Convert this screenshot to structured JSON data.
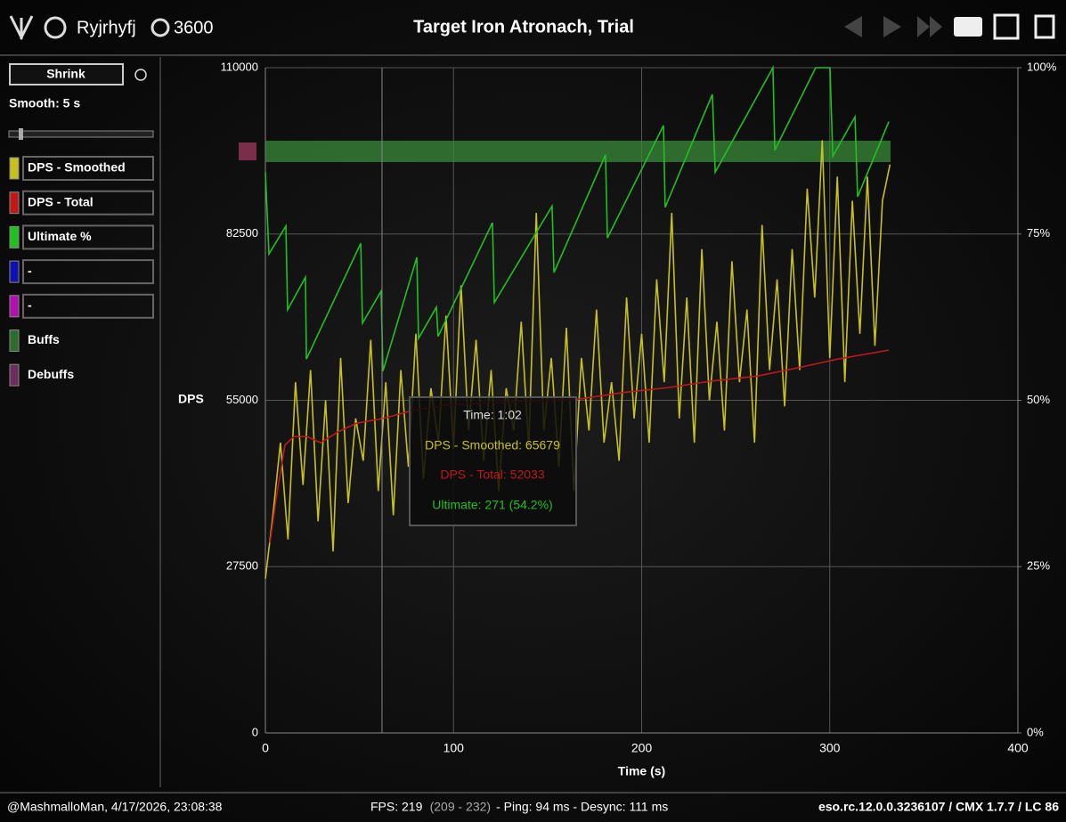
{
  "header": {
    "player": "Ryjrhyfj",
    "champion_points": "3600",
    "title": "Target Iron Atronach, Trial"
  },
  "sidebar": {
    "shrink": "Shrink",
    "smooth": "Smooth: 5 s",
    "extra_legend": [
      {
        "label": "-",
        "color": "#1010b0"
      },
      {
        "label": "-",
        "color": "#b010b0"
      },
      {
        "label": "Buffs",
        "color": "#2e6b2e"
      },
      {
        "label": "Debuffs",
        "color": "#6b2e5e"
      }
    ]
  },
  "footer": {
    "user": "@MashmalloMan, 4/17/2026, 23:08:38",
    "fps": "FPS: 219",
    "fps_range": "(209 - 232)",
    "net": "- Ping: 94 ms - Desync: 111 ms",
    "version": "eso.rc.12.0.0.3236107 / CMX 1.7.7 / LC 86"
  },
  "chart_data": {
    "type": "line",
    "ylabel": "DPS",
    "xlabel": "Time (s)",
    "xlim": [
      0,
      400
    ],
    "xticks": [
      0,
      100,
      200,
      300,
      400
    ],
    "ylim": [
      0,
      110000
    ],
    "yticks": [
      0,
      27500,
      55000,
      82500,
      110000
    ],
    "y2lim": [
      0,
      100
    ],
    "y2ticks": [
      {
        "value": 0,
        "label": "0%"
      },
      {
        "value": 25,
        "label": "25%"
      },
      {
        "value": 50,
        "label": "50%"
      },
      {
        "value": 75,
        "label": "75%"
      },
      {
        "value": 100,
        "label": "100%"
      }
    ],
    "grid": true,
    "cursor_x": 62,
    "tooltip": {
      "time": "Time: 1:02",
      "smoothed": "DPS - Smoothed: 65679",
      "total": "DPS - Total: 52033",
      "ultimate": "Ultimate: 271 (54.2%)"
    },
    "series": [
      {
        "name": "DPS - Smoothed",
        "color": "#c8c020",
        "x": [
          0,
          4,
          8,
          12,
          16,
          20,
          24,
          28,
          32,
          36,
          40,
          44,
          48,
          52,
          56,
          60,
          64,
          68,
          72,
          76,
          80,
          84,
          88,
          92,
          96,
          100,
          104,
          108,
          112,
          116,
          120,
          124,
          128,
          132,
          136,
          140,
          144,
          148,
          152,
          156,
          160,
          164,
          168,
          172,
          176,
          180,
          184,
          188,
          192,
          196,
          200,
          204,
          208,
          212,
          216,
          220,
          224,
          228,
          232,
          236,
          240,
          244,
          248,
          252,
          256,
          260,
          264,
          268,
          272,
          276,
          280,
          284,
          288,
          292,
          296,
          300,
          304,
          308,
          312,
          316,
          320,
          324,
          328,
          332
        ],
        "values": [
          25500,
          36000,
          48000,
          32000,
          58000,
          41000,
          60000,
          35000,
          55000,
          30000,
          62000,
          38000,
          52000,
          45000,
          65000,
          40000,
          58000,
          36000,
          60000,
          44000,
          66000,
          42000,
          57000,
          48000,
          69000,
          47000,
          74000,
          50000,
          65000,
          45000,
          60000,
          40000,
          57000,
          50000,
          68000,
          47000,
          86000,
          50000,
          62000,
          44000,
          67000,
          40000,
          62000,
          50000,
          70000,
          48000,
          58000,
          45000,
          72000,
          52000,
          66000,
          48000,
          75000,
          58000,
          86000,
          52000,
          72000,
          48000,
          80000,
          55000,
          68000,
          50000,
          78000,
          58000,
          70000,
          48000,
          84000,
          60000,
          75000,
          54000,
          80000,
          60000,
          90000,
          72000,
          98000,
          62000,
          92000,
          58000,
          88000,
          66000,
          92000,
          64000,
          88000,
          94000
        ]
      },
      {
        "name": "DPS - Total",
        "color": "#c01818",
        "x": [
          2.4,
          5.7,
          10.4,
          15.1,
          22.2,
          29.3,
          38.8,
          48.3,
          62.5,
          76.7,
          95.6,
          119.3,
          143,
          166.6,
          190.3,
          214,
          237.6,
          261.3,
          285,
          303.9,
          331.4
        ],
        "values": [
          31400,
          38700,
          47600,
          49000,
          49000,
          48000,
          49800,
          51200,
          52000,
          53200,
          54200,
          54600,
          54900,
          55200,
          56300,
          57100,
          58200,
          59000,
          60500,
          61800,
          63300
        ]
      },
      {
        "name": "Ultimate %",
        "color": "#20c020",
        "axis": "y2",
        "x": [
          0,
          1.9,
          10.9,
          11.8,
          21.3,
          21.8,
          50.7,
          51.6,
          61.5,
          62.5,
          80.5,
          81.4,
          90.9,
          91.8,
          120.7,
          121.7,
          152.4,
          153.4,
          180.8,
          181.8,
          211.6,
          212.5,
          237.6,
          239.1,
          269.8,
          270.8,
          292.5,
          300.1,
          301.6,
          313.4,
          314.8,
          331.4
        ],
        "values": [
          84.3,
          72,
          76.2,
          63.6,
          68.5,
          56.2,
          73.6,
          61.6,
          66.4,
          54.4,
          71.5,
          59.3,
          64,
          59.6,
          76.7,
          64.7,
          79.2,
          69.2,
          86.9,
          74.4,
          91.3,
          79,
          96,
          84.3,
          100,
          87.6,
          100,
          100,
          86.7,
          92.6,
          80.6,
          91.9
        ]
      }
    ]
  }
}
